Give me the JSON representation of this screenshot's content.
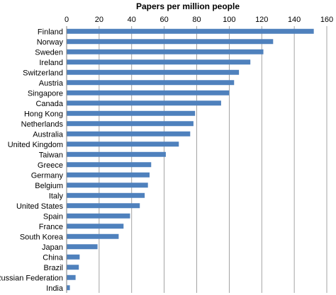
{
  "chart_data": {
    "type": "bar",
    "orientation": "horizontal",
    "title": "Papers per million people",
    "xlim": [
      0,
      160
    ],
    "x_ticks": [
      0,
      20,
      40,
      60,
      80,
      100,
      120,
      140,
      160
    ],
    "grid": true,
    "bar_color": "#4f81bd",
    "categories": [
      "Finland",
      "Norway",
      "Sweden",
      "Ireland",
      "Switzerland",
      "Austria",
      "Singapore",
      "Canada",
      "Hong Kong",
      "Netherlands",
      "Australia",
      "United Kingdom",
      "Taiwan",
      "Greece",
      "Germany",
      "Belgium",
      "Italy",
      "United States",
      "Spain",
      "France",
      "South Korea",
      "Japan",
      "China",
      "Brazil",
      "Russian Federation",
      "India"
    ],
    "values": [
      152,
      127,
      121,
      113,
      106,
      103,
      100,
      95,
      79,
      78,
      76,
      69,
      61,
      52,
      51,
      50,
      48,
      45,
      39,
      35,
      32,
      19,
      8,
      7.5,
      5.5,
      2
    ]
  }
}
